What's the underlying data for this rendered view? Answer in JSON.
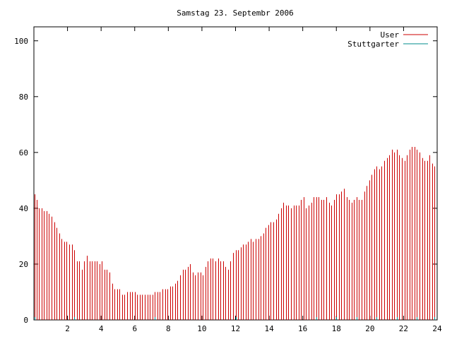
{
  "chart_data": {
    "type": "bar",
    "title": "Samstag 23. Septembr 2006",
    "xlabel": "",
    "ylabel": "",
    "xlim": [
      0,
      24
    ],
    "ylim": [
      0,
      105
    ],
    "x_ticks": [
      2,
      4,
      6,
      8,
      10,
      12,
      14,
      16,
      18,
      20,
      22,
      24
    ],
    "y_ticks": [
      0,
      20,
      40,
      60,
      80,
      100
    ],
    "legend_position": "top-right",
    "series": [
      {
        "name": "User",
        "color": "#cc0000",
        "style": "impulses",
        "points": [
          [
            0.05,
            45
          ],
          [
            0.15,
            43
          ],
          [
            0.3,
            40
          ],
          [
            0.45,
            40
          ],
          [
            0.6,
            39
          ],
          [
            0.75,
            39
          ],
          [
            0.9,
            38
          ],
          [
            1.05,
            37
          ],
          [
            1.2,
            35
          ],
          [
            1.35,
            33
          ],
          [
            1.5,
            31
          ],
          [
            1.65,
            29
          ],
          [
            1.8,
            28
          ],
          [
            1.95,
            28
          ],
          [
            2.1,
            27
          ],
          [
            2.25,
            27
          ],
          [
            2.4,
            25
          ],
          [
            2.55,
            21
          ],
          [
            2.7,
            21
          ],
          [
            2.85,
            18
          ],
          [
            3.0,
            21
          ],
          [
            3.15,
            23
          ],
          [
            3.3,
            21
          ],
          [
            3.45,
            21
          ],
          [
            3.6,
            21
          ],
          [
            3.75,
            21
          ],
          [
            3.9,
            20
          ],
          [
            4.05,
            21
          ],
          [
            4.2,
            18
          ],
          [
            4.35,
            18
          ],
          [
            4.5,
            17
          ],
          [
            4.65,
            13
          ],
          [
            4.8,
            11
          ],
          [
            4.95,
            11
          ],
          [
            5.1,
            11
          ],
          [
            5.25,
            9
          ],
          [
            5.4,
            9
          ],
          [
            5.55,
            10
          ],
          [
            5.7,
            10
          ],
          [
            5.85,
            10
          ],
          [
            6.0,
            10
          ],
          [
            6.15,
            9
          ],
          [
            6.3,
            9
          ],
          [
            6.45,
            9
          ],
          [
            6.6,
            9
          ],
          [
            6.75,
            9
          ],
          [
            6.9,
            9
          ],
          [
            7.05,
            9
          ],
          [
            7.2,
            10
          ],
          [
            7.35,
            10
          ],
          [
            7.5,
            10
          ],
          [
            7.65,
            11
          ],
          [
            7.8,
            11
          ],
          [
            7.95,
            11
          ],
          [
            8.1,
            12
          ],
          [
            8.25,
            12
          ],
          [
            8.4,
            13
          ],
          [
            8.55,
            14
          ],
          [
            8.7,
            16
          ],
          [
            8.85,
            18
          ],
          [
            9.0,
            18
          ],
          [
            9.15,
            19
          ],
          [
            9.3,
            20
          ],
          [
            9.45,
            17
          ],
          [
            9.6,
            16
          ],
          [
            9.75,
            17
          ],
          [
            9.9,
            17
          ],
          [
            10.05,
            16
          ],
          [
            10.2,
            19
          ],
          [
            10.35,
            21
          ],
          [
            10.5,
            22
          ],
          [
            10.65,
            22
          ],
          [
            10.8,
            21
          ],
          [
            10.95,
            22
          ],
          [
            11.1,
            21
          ],
          [
            11.25,
            21
          ],
          [
            11.4,
            19
          ],
          [
            11.55,
            18
          ],
          [
            11.7,
            21
          ],
          [
            11.85,
            24
          ],
          [
            12.0,
            25
          ],
          [
            12.15,
            25
          ],
          [
            12.3,
            26
          ],
          [
            12.45,
            27
          ],
          [
            12.6,
            27
          ],
          [
            12.75,
            28
          ],
          [
            12.9,
            29
          ],
          [
            13.05,
            28
          ],
          [
            13.2,
            29
          ],
          [
            13.35,
            29
          ],
          [
            13.5,
            30
          ],
          [
            13.65,
            31
          ],
          [
            13.8,
            33
          ],
          [
            13.95,
            34
          ],
          [
            14.1,
            35
          ],
          [
            14.25,
            35
          ],
          [
            14.4,
            36
          ],
          [
            14.55,
            38
          ],
          [
            14.7,
            40
          ],
          [
            14.85,
            42
          ],
          [
            15.0,
            41
          ],
          [
            15.15,
            41
          ],
          [
            15.3,
            40
          ],
          [
            15.45,
            41
          ],
          [
            15.6,
            41
          ],
          [
            15.75,
            41
          ],
          [
            15.9,
            43
          ],
          [
            16.05,
            44
          ],
          [
            16.2,
            40
          ],
          [
            16.35,
            41
          ],
          [
            16.5,
            42
          ],
          [
            16.65,
            44
          ],
          [
            16.8,
            44
          ],
          [
            16.95,
            44
          ],
          [
            17.1,
            43
          ],
          [
            17.25,
            43
          ],
          [
            17.4,
            44
          ],
          [
            17.55,
            42
          ],
          [
            17.7,
            41
          ],
          [
            17.85,
            43
          ],
          [
            18.0,
            45
          ],
          [
            18.15,
            45
          ],
          [
            18.3,
            46
          ],
          [
            18.45,
            47
          ],
          [
            18.6,
            44
          ],
          [
            18.75,
            43
          ],
          [
            18.9,
            42
          ],
          [
            19.05,
            43
          ],
          [
            19.2,
            44
          ],
          [
            19.35,
            43
          ],
          [
            19.5,
            43
          ],
          [
            19.65,
            46
          ],
          [
            19.8,
            48
          ],
          [
            19.95,
            50
          ],
          [
            20.1,
            52
          ],
          [
            20.25,
            54
          ],
          [
            20.4,
            55
          ],
          [
            20.55,
            54
          ],
          [
            20.7,
            55
          ],
          [
            20.85,
            57
          ],
          [
            21.0,
            58
          ],
          [
            21.15,
            59
          ],
          [
            21.3,
            61
          ],
          [
            21.45,
            60
          ],
          [
            21.6,
            61
          ],
          [
            21.75,
            59
          ],
          [
            21.9,
            58
          ],
          [
            22.05,
            57
          ],
          [
            22.2,
            59
          ],
          [
            22.35,
            61
          ],
          [
            22.5,
            62
          ],
          [
            22.65,
            62
          ],
          [
            22.8,
            61
          ],
          [
            22.95,
            60
          ],
          [
            23.1,
            58
          ],
          [
            23.25,
            57
          ],
          [
            23.4,
            57
          ],
          [
            23.55,
            59
          ],
          [
            23.7,
            56
          ],
          [
            23.85,
            55
          ]
        ]
      },
      {
        "name": "Stuttgarter",
        "color": "#008b8b",
        "style": "impulses",
        "points": [
          [
            0.05,
            1
          ],
          [
            2.4,
            1
          ],
          [
            7.2,
            1
          ],
          [
            12.0,
            1
          ],
          [
            16.8,
            1
          ],
          [
            18.0,
            1
          ],
          [
            19.2,
            1
          ],
          [
            20.4,
            1
          ],
          [
            21.6,
            1
          ],
          [
            22.8,
            1
          ],
          [
            23.85,
            1
          ]
        ]
      }
    ]
  }
}
